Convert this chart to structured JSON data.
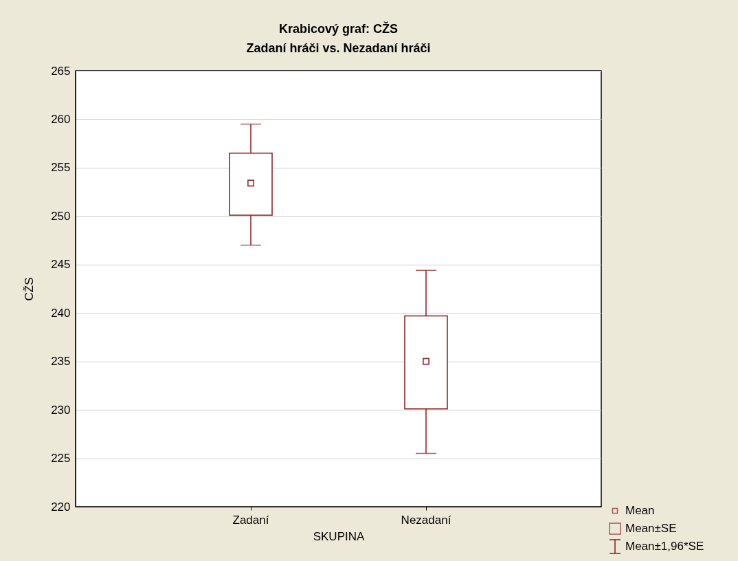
{
  "chart_data": {
    "type": "scatter",
    "title": "Krabicový graf: CŽS",
    "subtitle": "Zadaní hráči vs. Nezadaní hráči",
    "xlabel": "SKUPINA",
    "ylabel": "CŽS",
    "categories": [
      "Zadaní",
      "Nezadaní"
    ],
    "ylim": [
      220,
      265
    ],
    "yticks": [
      220,
      225,
      230,
      235,
      240,
      245,
      250,
      255,
      260,
      265
    ],
    "grid": "y",
    "legend": "bottom right",
    "series": [
      {
        "name": "Mean",
        "marker": "square",
        "color": "#8b1a1a",
        "values": [
          253.4,
          235.0
        ]
      },
      {
        "name": "Mean±SE",
        "type": "bar",
        "color": "#8b1a1a",
        "base": [
          250.1,
          230.1
        ],
        "values": [
          6.4,
          9.6
        ]
      },
      {
        "name": "Mean±1,96*SE",
        "marker": "square",
        "color": "#8b1a1a",
        "values": [
          253.4,
          235.0
        ],
        "errors": [
          [
            247.0,
            259.5
          ],
          [
            225.5,
            244.4
          ]
        ]
      }
    ]
  }
}
